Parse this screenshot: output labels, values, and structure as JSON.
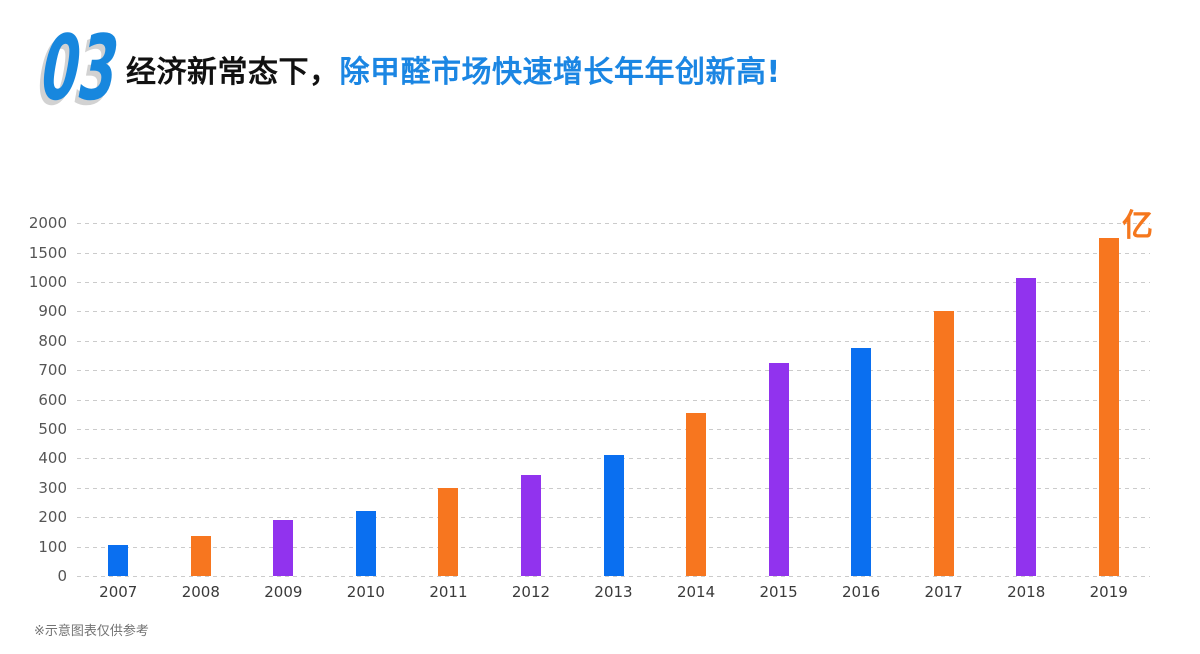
{
  "header": {
    "section_number": "03",
    "title_black": "经济新常态下，",
    "title_blue": "除甲醛市场快速增长年年创新高!"
  },
  "footnote": "※示意图表仅供参考",
  "palette": {
    "blue": "#0a6ff0",
    "orange": "#f7761f",
    "purple": "#9133ee"
  },
  "chart_data": {
    "type": "bar",
    "title": "",
    "unit_label": "亿",
    "categories": [
      "2007",
      "2008",
      "2009",
      "2010",
      "2011",
      "2012",
      "2013",
      "2014",
      "2015",
      "2016",
      "2017",
      "2018",
      "2019"
    ],
    "values": [
      105,
      135,
      190,
      220,
      300,
      345,
      410,
      555,
      725,
      775,
      900,
      1070,
      1750
    ],
    "bar_color_names": [
      "blue",
      "orange",
      "purple",
      "blue",
      "orange",
      "purple",
      "blue",
      "orange",
      "purple",
      "blue",
      "orange",
      "purple",
      "orange"
    ],
    "y_ticks": [
      0,
      100,
      200,
      300,
      400,
      500,
      600,
      700,
      800,
      900,
      1000,
      1500,
      2000
    ],
    "ylabel": "",
    "xlabel": "",
    "grid": "dashed-horizontal",
    "axis_note": "even tick spacing; non-linear above 1000"
  }
}
